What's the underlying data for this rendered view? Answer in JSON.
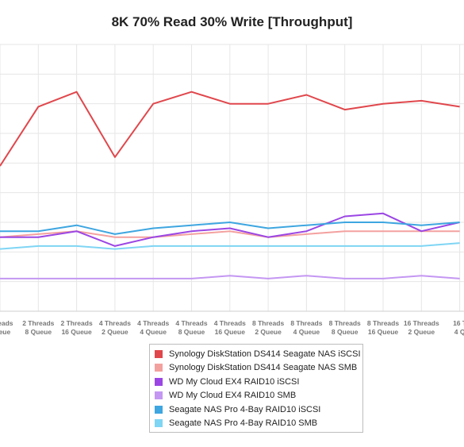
{
  "chart_data": {
    "type": "line",
    "title": "8K 70% Read 30% Write [Throughput]",
    "xlabel": "",
    "ylabel": "",
    "grid": true,
    "legend_placement": "bottom-center",
    "categories": [
      [
        "Threads",
        "Queue"
      ],
      [
        "2 Threads",
        "8 Queue"
      ],
      [
        "2 Threads",
        "16 Queue"
      ],
      [
        "4 Threads",
        "2 Queue"
      ],
      [
        "4 Threads",
        "4 Queue"
      ],
      [
        "4 Threads",
        "8 Queue"
      ],
      [
        "4 Threads",
        "16 Queue"
      ],
      [
        "8 Threads",
        "2 Queue"
      ],
      [
        "8 Threads",
        "4 Queue"
      ],
      [
        "8 Threads",
        "8 Queue"
      ],
      [
        "8 Threads",
        "16 Queue"
      ],
      [
        "16 Threads",
        "2 Queue"
      ],
      [
        "16 T",
        "4 Q"
      ]
    ],
    "series": [
      {
        "name": "Synology DiskStation DS414 Seagate NAS iSCSI",
        "color": "#e0474c",
        "values": [
          49,
          69,
          74,
          52,
          70,
          74,
          70,
          70,
          73,
          68,
          70,
          71,
          69
        ]
      },
      {
        "name": "Synology DiskStation DS414 Seagate NAS SMB",
        "color": "#f3a19f",
        "values": [
          25,
          26,
          27,
          25,
          25,
          26,
          27,
          25,
          26,
          27,
          27,
          27,
          27
        ]
      },
      {
        "name": "WD My Cloud EX4 RAID10 iSCSI",
        "color": "#9b46e4",
        "values": [
          25,
          25,
          27,
          22,
          25,
          27,
          28,
          25,
          27,
          32,
          33,
          27,
          30
        ]
      },
      {
        "name": "WD My Cloud EX4 RAID10 SMB",
        "color": "#c497f2",
        "values": [
          11,
          11,
          11,
          11,
          11,
          11,
          12,
          11,
          12,
          11,
          11,
          12,
          11
        ]
      },
      {
        "name": "Seagate NAS Pro 4-Bay RAID10 iSCSI",
        "color": "#3ea6e0",
        "values": [
          27,
          27,
          29,
          26,
          28,
          29,
          30,
          28,
          29,
          30,
          30,
          29,
          30
        ]
      },
      {
        "name": "Seagate NAS Pro 4-Bay RAID10 SMB",
        "color": "#7fd5f4",
        "values": [
          21,
          22,
          22,
          21,
          22,
          22,
          22,
          22,
          22,
          22,
          22,
          22,
          23
        ]
      }
    ],
    "ylim": [
      0,
      90
    ],
    "ytick_step": 10
  }
}
